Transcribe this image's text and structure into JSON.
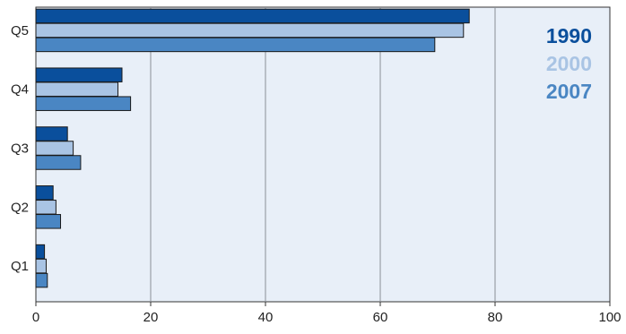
{
  "chart_data": {
    "type": "bar",
    "orientation": "horizontal",
    "categories": [
      "Q1",
      "Q2",
      "Q3",
      "Q4",
      "Q5"
    ],
    "series": [
      {
        "name": "1990",
        "color": "#0a4f9c",
        "values": [
          1.5,
          3.0,
          5.5,
          15.0,
          75.5
        ]
      },
      {
        "name": "2000",
        "color": "#a9c4e4",
        "values": [
          1.8,
          3.5,
          6.5,
          14.3,
          74.5
        ]
      },
      {
        "name": "2007",
        "color": "#4a86c3",
        "values": [
          2.0,
          4.3,
          7.8,
          16.5,
          69.5
        ]
      }
    ],
    "xlim": [
      0,
      100
    ],
    "xticks": [
      0,
      20,
      40,
      60,
      80,
      100
    ],
    "grid": true,
    "legend_position": "top-right",
    "title": "",
    "xlabel": "",
    "ylabel": ""
  }
}
